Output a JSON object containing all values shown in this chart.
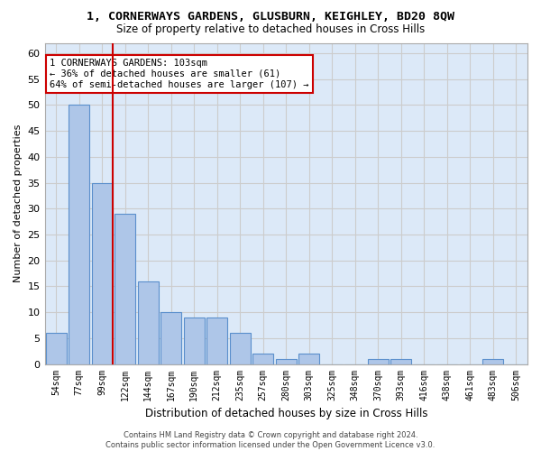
{
  "title": "1, CORNERWAYS GARDENS, GLUSBURN, KEIGHLEY, BD20 8QW",
  "subtitle": "Size of property relative to detached houses in Cross Hills",
  "xlabel": "Distribution of detached houses by size in Cross Hills",
  "ylabel": "Number of detached properties",
  "categories": [
    "54sqm",
    "77sqm",
    "99sqm",
    "122sqm",
    "144sqm",
    "167sqm",
    "190sqm",
    "212sqm",
    "235sqm",
    "257sqm",
    "280sqm",
    "303sqm",
    "325sqm",
    "348sqm",
    "370sqm",
    "393sqm",
    "416sqm",
    "438sqm",
    "461sqm",
    "483sqm",
    "506sqm"
  ],
  "values": [
    6,
    50,
    35,
    29,
    16,
    10,
    9,
    9,
    6,
    2,
    1,
    2,
    0,
    0,
    1,
    1,
    0,
    0,
    0,
    1,
    0
  ],
  "bar_color": "#aec6e8",
  "bar_edge_color": "#5a8fcc",
  "vline_x_index": 2,
  "vline_color": "#cc0000",
  "annotation_text": "1 CORNERWAYS GARDENS: 103sqm\n← 36% of detached houses are smaller (61)\n64% of semi-detached houses are larger (107) →",
  "annotation_box_color": "#ffffff",
  "annotation_box_edge_color": "#cc0000",
  "ylim": [
    0,
    62
  ],
  "yticks": [
    0,
    5,
    10,
    15,
    20,
    25,
    30,
    35,
    40,
    45,
    50,
    55,
    60
  ],
  "grid_color": "#cccccc",
  "bg_color": "#dce9f8",
  "footer_line1": "Contains HM Land Registry data © Crown copyright and database right 2024.",
  "footer_line2": "Contains public sector information licensed under the Open Government Licence v3.0."
}
